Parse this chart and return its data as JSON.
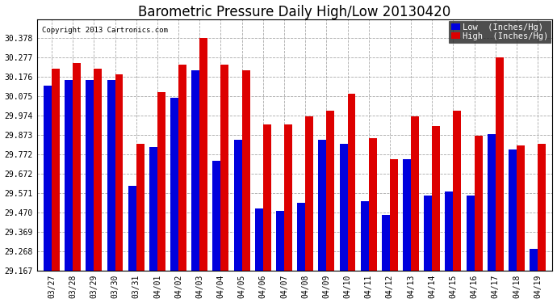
{
  "title": "Barometric Pressure Daily High/Low 20130420",
  "copyright": "Copyright 2013 Cartronics.com",
  "low_color": "#0000dd",
  "high_color": "#dd0000",
  "background_color": "#ffffff",
  "grid_color": "#aaaaaa",
  "dates": [
    "03/27",
    "03/28",
    "03/29",
    "03/30",
    "03/31",
    "04/01",
    "04/02",
    "04/03",
    "04/04",
    "04/05",
    "04/06",
    "04/07",
    "04/08",
    "04/09",
    "04/10",
    "04/11",
    "04/12",
    "04/13",
    "04/14",
    "04/15",
    "04/16",
    "04/17",
    "04/18",
    "04/19"
  ],
  "low_values": [
    30.13,
    30.16,
    30.16,
    30.16,
    29.61,
    29.81,
    30.07,
    30.21,
    29.74,
    29.85,
    29.49,
    29.48,
    29.52,
    29.85,
    29.83,
    29.53,
    29.46,
    29.75,
    29.56,
    29.58,
    29.56,
    29.88,
    29.8,
    29.28
  ],
  "high_values": [
    30.22,
    30.25,
    30.22,
    30.19,
    29.83,
    30.1,
    30.24,
    30.38,
    30.24,
    30.21,
    29.93,
    29.93,
    29.97,
    30.0,
    30.09,
    29.86,
    29.75,
    29.97,
    29.92,
    30.0,
    29.87,
    30.28,
    29.82,
    29.83
  ],
  "ylim_min": 29.167,
  "ylim_max": 30.478,
  "yticks": [
    29.167,
    29.268,
    29.369,
    29.47,
    29.571,
    29.672,
    29.772,
    29.873,
    29.974,
    30.075,
    30.176,
    30.277,
    30.378
  ],
  "ytick_labels": [
    "29.167",
    "29.268",
    "29.369",
    "29.470",
    "29.571",
    "29.672",
    "29.772",
    "29.873",
    "29.974",
    "30.075",
    "30.176",
    "30.277",
    "30.378"
  ],
  "bar_width": 0.38,
  "title_fontsize": 12,
  "tick_fontsize": 7,
  "legend_fontsize": 7.5,
  "copyright_fontsize": 6.5
}
